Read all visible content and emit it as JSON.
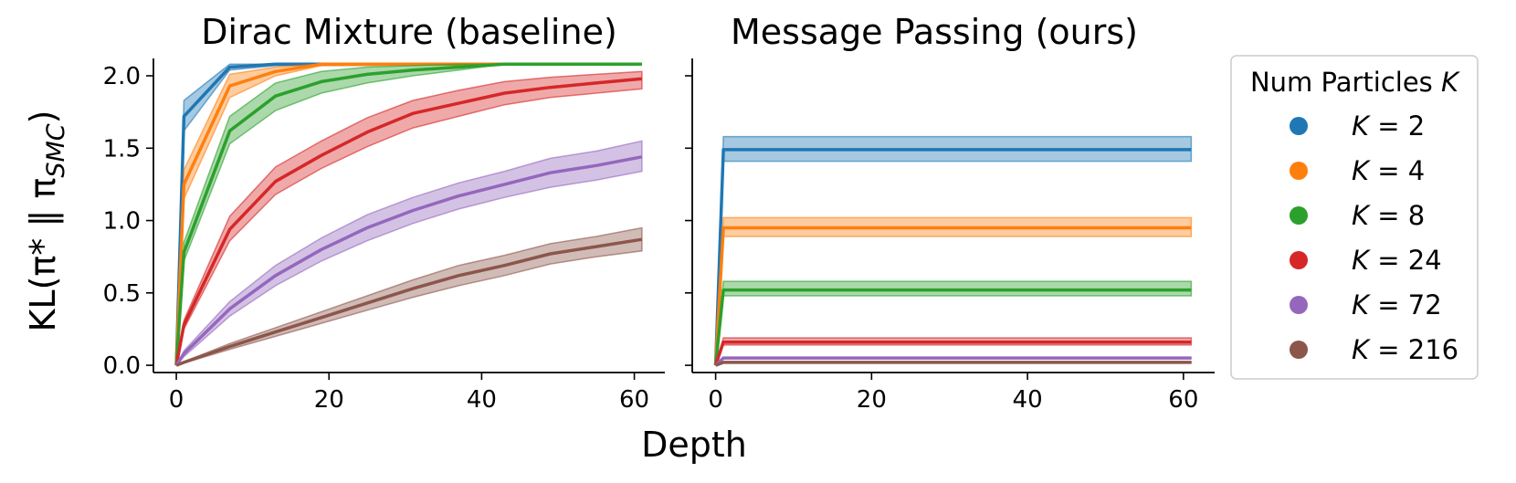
{
  "figure": {
    "xlabel": "Depth",
    "ylabel": "KL(π* ‖ π",
    "ylabel_sub": "SMC",
    "ylabel_close": ")"
  },
  "legend": {
    "title": "Num Particles K",
    "entries": [
      "K = 2",
      "K = 4",
      "K = 8",
      "K = 24",
      "K = 72",
      "K = 216"
    ]
  },
  "colors": {
    "K2": "#1f77b4",
    "K4": "#ff7f0e",
    "K8": "#2ca02c",
    "K24": "#d62728",
    "K72": "#9467bd",
    "K216": "#8c564b"
  },
  "chart_data": [
    {
      "type": "line",
      "title": "Dirac Mixture (baseline)",
      "xlabel": "",
      "ylabel": "KL(π* ‖ π_SMC)",
      "xlim": [
        -3,
        64
      ],
      "ylim": [
        -0.05,
        2.12
      ],
      "xticks": [
        0,
        20,
        40,
        60
      ],
      "yticks": [
        "0.0",
        "0.5",
        "1.0",
        "1.5",
        "2.0"
      ],
      "series": [
        {
          "name": "K = 2",
          "x": [
            0,
            1,
            7,
            13,
            61
          ],
          "y": [
            0,
            1.72,
            2.06,
            2.08,
            2.08
          ],
          "lower": [
            0,
            1.62,
            2.04,
            2.07,
            2.08
          ],
          "upper": [
            0,
            1.83,
            2.08,
            2.08,
            2.08
          ]
        },
        {
          "name": "K = 4",
          "x": [
            0,
            1,
            7,
            13,
            19,
            61
          ],
          "y": [
            0,
            1.25,
            1.93,
            2.03,
            2.08,
            2.08
          ],
          "lower": [
            0,
            1.15,
            1.85,
            2.0,
            2.07,
            2.08
          ],
          "upper": [
            0,
            1.35,
            2.01,
            2.06,
            2.08,
            2.08
          ]
        },
        {
          "name": "K = 8",
          "x": [
            0,
            1,
            7,
            13,
            19,
            25,
            31,
            37,
            43,
            61
          ],
          "y": [
            0,
            0.78,
            1.62,
            1.86,
            1.96,
            2.01,
            2.04,
            2.06,
            2.08,
            2.08
          ],
          "lower": [
            0,
            0.72,
            1.53,
            1.76,
            1.88,
            1.95,
            2.0,
            2.04,
            2.08,
            2.08
          ],
          "upper": [
            0,
            0.85,
            1.72,
            1.95,
            2.03,
            2.06,
            2.07,
            2.08,
            2.08,
            2.08
          ]
        },
        {
          "name": "K = 24",
          "x": [
            0,
            1,
            7,
            13,
            19,
            25,
            31,
            37,
            43,
            49,
            55,
            61
          ],
          "y": [
            0,
            0.28,
            0.94,
            1.27,
            1.45,
            1.61,
            1.74,
            1.81,
            1.88,
            1.92,
            1.95,
            1.98
          ],
          "lower": [
            0,
            0.25,
            0.86,
            1.18,
            1.36,
            1.51,
            1.64,
            1.72,
            1.8,
            1.85,
            1.88,
            1.91
          ],
          "upper": [
            0,
            0.31,
            1.03,
            1.37,
            1.55,
            1.71,
            1.83,
            1.9,
            1.96,
            1.99,
            2.01,
            2.03
          ]
        },
        {
          "name": "K = 72",
          "x": [
            0,
            1,
            7,
            13,
            19,
            25,
            31,
            37,
            43,
            49,
            55,
            61
          ],
          "y": [
            0,
            0.08,
            0.39,
            0.62,
            0.8,
            0.95,
            1.07,
            1.17,
            1.25,
            1.33,
            1.38,
            1.44
          ],
          "lower": [
            0,
            0.06,
            0.34,
            0.55,
            0.72,
            0.86,
            0.98,
            1.08,
            1.16,
            1.23,
            1.28,
            1.34
          ],
          "upper": [
            0,
            0.1,
            0.44,
            0.69,
            0.88,
            1.04,
            1.16,
            1.26,
            1.34,
            1.43,
            1.48,
            1.55
          ]
        },
        {
          "name": "K = 216",
          "x": [
            0,
            1,
            7,
            13,
            19,
            25,
            31,
            37,
            43,
            49,
            55,
            61
          ],
          "y": [
            0,
            0.02,
            0.13,
            0.23,
            0.33,
            0.43,
            0.53,
            0.62,
            0.69,
            0.77,
            0.82,
            0.87
          ],
          "lower": [
            0,
            0.015,
            0.11,
            0.2,
            0.29,
            0.38,
            0.47,
            0.55,
            0.62,
            0.7,
            0.75,
            0.79
          ],
          "upper": [
            0,
            0.025,
            0.15,
            0.26,
            0.37,
            0.48,
            0.59,
            0.69,
            0.76,
            0.84,
            0.89,
            0.95
          ]
        }
      ]
    },
    {
      "type": "line",
      "title": "Message Passing (ours)",
      "xlabel": "",
      "ylabel": "",
      "xlim": [
        -3,
        64
      ],
      "ylim": [
        -0.05,
        2.12
      ],
      "xticks": [
        0,
        20,
        40,
        60
      ],
      "yticks": [],
      "series": [
        {
          "name": "K = 2",
          "x": [
            0,
            1,
            61
          ],
          "y": [
            0,
            1.49,
            1.49
          ],
          "lower": [
            0,
            1.41,
            1.41
          ],
          "upper": [
            0,
            1.58,
            1.58
          ]
        },
        {
          "name": "K = 4",
          "x": [
            0,
            1,
            61
          ],
          "y": [
            0,
            0.95,
            0.95
          ],
          "lower": [
            0,
            0.89,
            0.89
          ],
          "upper": [
            0,
            1.02,
            1.02
          ]
        },
        {
          "name": "K = 8",
          "x": [
            0,
            1,
            61
          ],
          "y": [
            0,
            0.52,
            0.52
          ],
          "lower": [
            0,
            0.48,
            0.48
          ],
          "upper": [
            0,
            0.58,
            0.58
          ]
        },
        {
          "name": "K = 24",
          "x": [
            0,
            1,
            61
          ],
          "y": [
            0,
            0.16,
            0.16
          ],
          "lower": [
            0,
            0.14,
            0.14
          ],
          "upper": [
            0,
            0.19,
            0.19
          ]
        },
        {
          "name": "K = 72",
          "x": [
            0,
            1,
            61
          ],
          "y": [
            0,
            0.05,
            0.05
          ],
          "lower": [
            0,
            0.045,
            0.045
          ],
          "upper": [
            0,
            0.055,
            0.055
          ]
        },
        {
          "name": "K = 216",
          "x": [
            0,
            1,
            61
          ],
          "y": [
            0,
            0.02,
            0.02
          ],
          "lower": [
            0,
            0.015,
            0.015
          ],
          "upper": [
            0,
            0.025,
            0.025
          ]
        }
      ]
    }
  ]
}
